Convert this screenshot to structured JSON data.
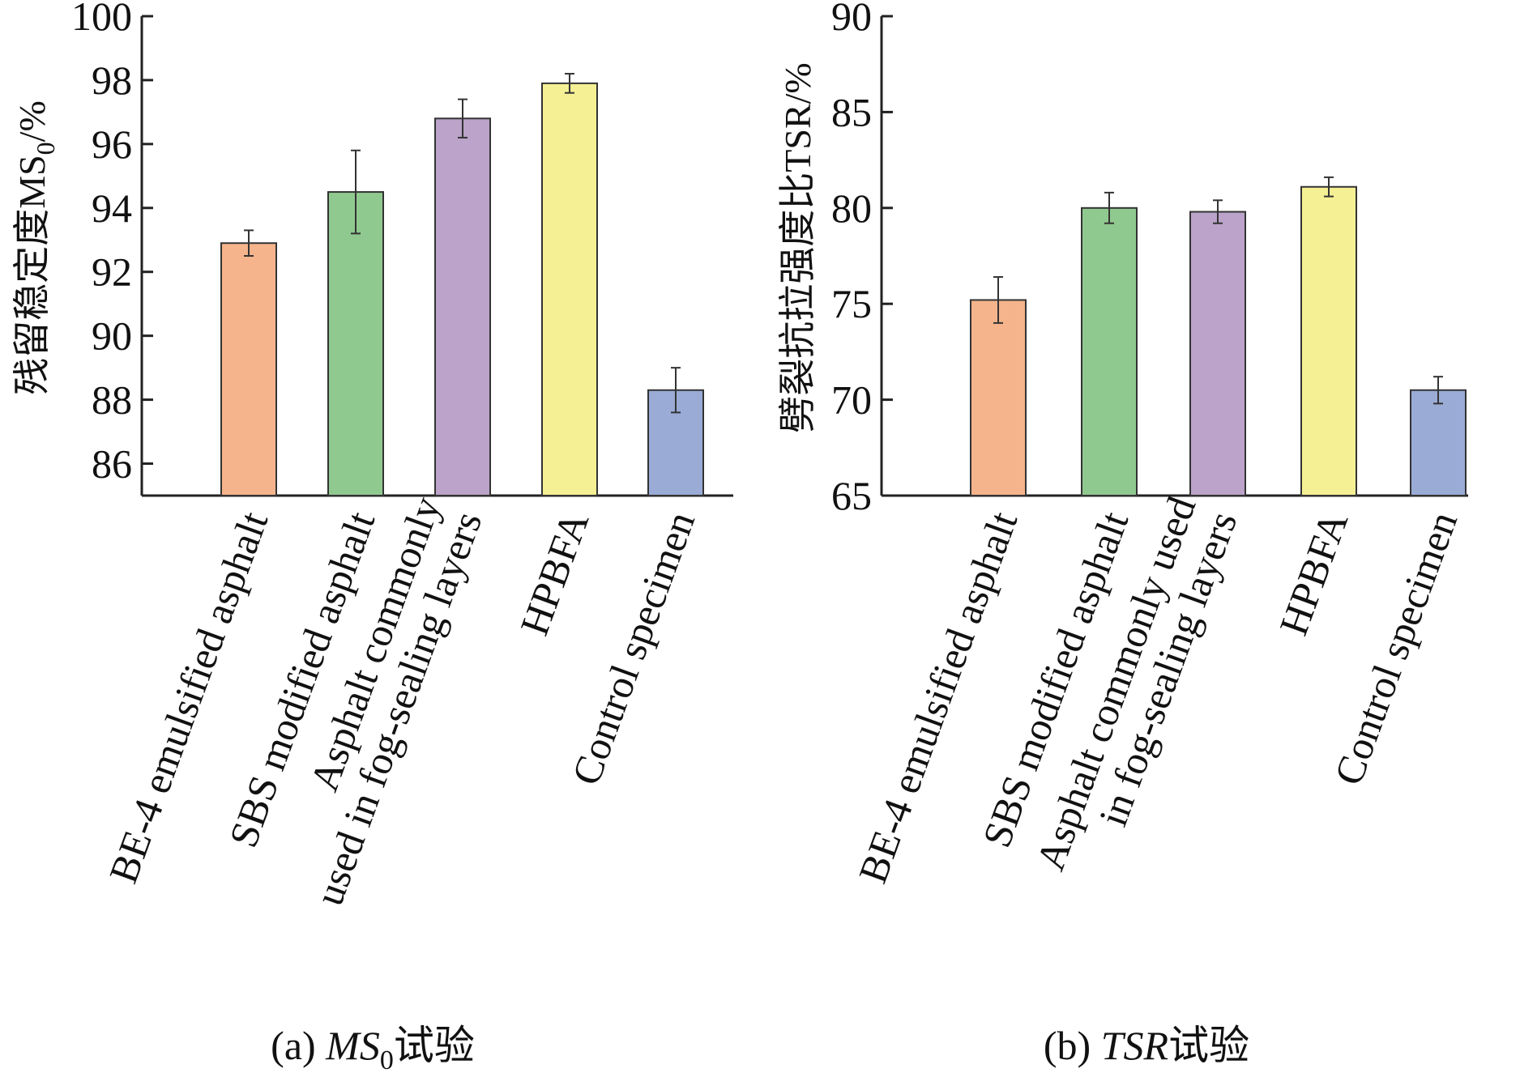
{
  "chart_data": [
    {
      "type": "bar",
      "ylabel": "残留稳定度MS",
      "ylabel_sub": "0",
      "ylabel_unit": "/%",
      "caption": {
        "prefix": "(a) ",
        "ital": "MS",
        "sub": "0",
        "suffix": "试验"
      },
      "ylim": [
        85,
        100
      ],
      "yticks": [
        86,
        88,
        90,
        92,
        94,
        96,
        98,
        100
      ],
      "categories": [
        [
          "BE-4 emulsified asphalt"
        ],
        [
          "SBS modified asphalt"
        ],
        [
          "Asphalt commonly",
          "used in fog-sealing layers"
        ],
        [
          "HPBFA"
        ],
        [
          "Control specimen"
        ]
      ],
      "values": [
        92.9,
        94.5,
        96.8,
        97.9,
        88.3
      ],
      "errors": [
        0.4,
        1.3,
        0.6,
        0.3,
        0.7
      ],
      "colors": [
        "#f5b48b",
        "#90c98f",
        "#bba3c9",
        "#f5f094",
        "#9aabd6"
      ]
    },
    {
      "type": "bar",
      "ylabel": "劈裂抗拉强度比TSR/%",
      "caption": {
        "prefix": "(b) ",
        "ital": "TSR",
        "sub": "",
        "suffix": "试验"
      },
      "ylim": [
        65,
        90
      ],
      "yticks": [
        65,
        70,
        75,
        80,
        85,
        90
      ],
      "categories": [
        [
          "BE-4 emulsified asphalt"
        ],
        [
          "SBS modified asphalt"
        ],
        [
          "Asphalt commonly used",
          "in fog-sealing layers"
        ],
        [
          "HPBFA"
        ],
        [
          "Control specimen"
        ]
      ],
      "values": [
        75.2,
        80.0,
        79.8,
        81.1,
        70.5
      ],
      "errors": [
        1.2,
        0.8,
        0.6,
        0.5,
        0.7
      ],
      "colors": [
        "#f5b48b",
        "#90c98f",
        "#bba3c9",
        "#f5f094",
        "#9aabd6"
      ]
    }
  ]
}
